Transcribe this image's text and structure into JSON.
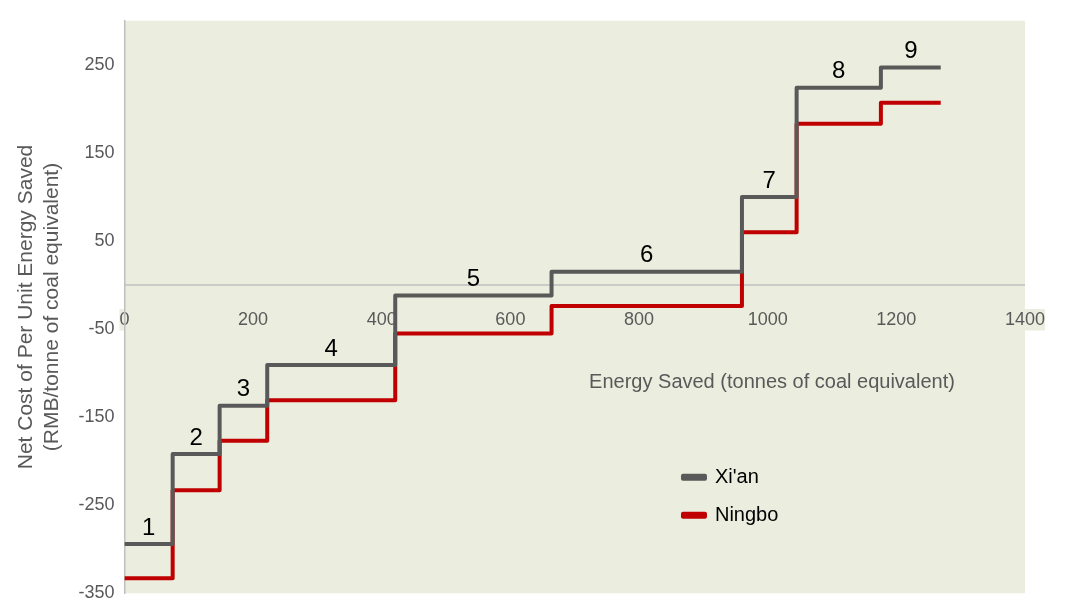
{
  "chart_data": {
    "type": "step",
    "xlabel": "Energy Saved (tonnes of coal equivalent)",
    "ylabel": "Net Cost of Per Unit Energy Saved (RMB/tonne of coal equivalent)",
    "x": [
      0,
      75,
      148,
      222,
      421,
      664,
      960,
      1045,
      1176,
      1269
    ],
    "series": [
      {
        "name": "Xi'an",
        "color": "#595959",
        "values": [
          -294,
          -192,
          -137,
          -91,
          -12,
          15,
          100,
          224,
          247,
          247
        ]
      },
      {
        "name": "Ningbo",
        "color": "#c00000",
        "values": [
          -333,
          -233,
          -177,
          -131,
          -55,
          -24,
          60,
          183,
          207,
          207
        ]
      }
    ],
    "xlim": [
      0,
      1400
    ],
    "xticks": [
      0,
      200,
      400,
      600,
      800,
      1000,
      1200,
      1400
    ],
    "ylim": [
      -350,
      300
    ],
    "yticks": [
      -350,
      -250,
      -150,
      -50,
      50,
      150,
      250
    ],
    "annotations": [
      "1",
      "2",
      "3",
      "4",
      "5",
      "6",
      "7",
      "8",
      "9"
    ],
    "grid": false,
    "legend": "bottom right",
    "marker": "none",
    "line_style": "solid"
  }
}
